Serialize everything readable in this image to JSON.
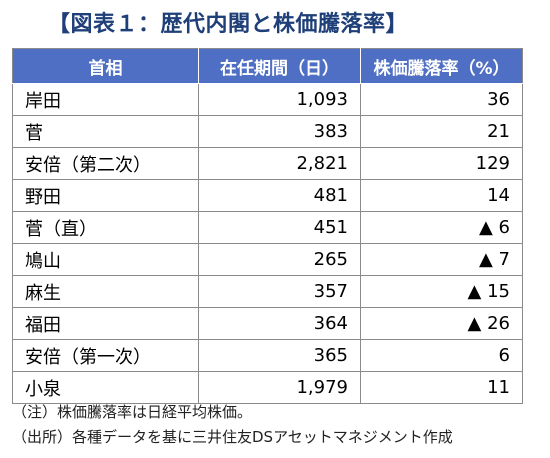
{
  "title": "【図表１：歴代内閣と株価騰落率】",
  "table": {
    "headers": [
      "首相",
      "在任期間（日）",
      "株価騰落率（%）"
    ],
    "rows": [
      {
        "name": "岸田",
        "days": "1,093",
        "change": "36"
      },
      {
        "name": "菅",
        "days": "383",
        "change": "21"
      },
      {
        "name": "安倍（第二次）",
        "days": "2,821",
        "change": "129"
      },
      {
        "name": "野田",
        "days": "481",
        "change": "14"
      },
      {
        "name": "菅（直）",
        "days": "451",
        "change": "▲ 6"
      },
      {
        "name": "鳩山",
        "days": "265",
        "change": "▲ 7"
      },
      {
        "name": "麻生",
        "days": "357",
        "change": "▲ 15"
      },
      {
        "name": "福田",
        "days": "364",
        "change": "▲ 26"
      },
      {
        "name": "安倍（第一次）",
        "days": "365",
        "change": "6"
      },
      {
        "name": "小泉",
        "days": "1,979",
        "change": "11"
      }
    ]
  },
  "notes": {
    "note": "（注）株価騰落率は日経平均株価。",
    "source": "（出所）各種データを基に三井住友DSアセットマネジメント作成"
  },
  "colors": {
    "title": "#1f3f78",
    "header_bg": "#4f6fc4",
    "header_text": "#ffffff"
  }
}
